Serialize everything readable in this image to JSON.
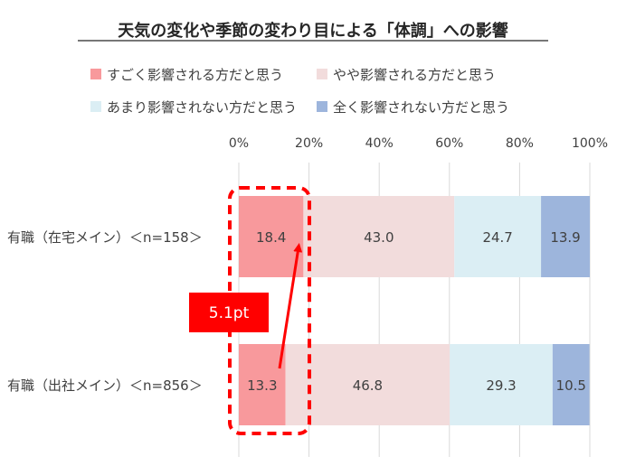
{
  "chart_data": {
    "type": "bar",
    "orientation": "horizontal",
    "stacked": true,
    "stack_mode": "percent",
    "title": "天気の変化や季節の変わり目による「体調」への影響",
    "categories": [
      "有職（在宅メイン）＜n=158＞",
      "有職（出社メイン）＜n=856＞"
    ],
    "series": [
      {
        "name": "すごく影響される方だと思う",
        "color": "#f8999c",
        "values": [
          18.4,
          13.3
        ]
      },
      {
        "name": "やや影響される方だと思う",
        "color": "#f2dcdc",
        "values": [
          43.0,
          46.8
        ]
      },
      {
        "name": "あまり影響されない方だと思う",
        "color": "#dbeef4",
        "values": [
          24.7,
          29.3
        ]
      },
      {
        "name": "全く影響されない方だと思う",
        "color": "#9db5dc",
        "values": [
          13.9,
          10.5
        ]
      }
    ],
    "x_ticks": [
      "0%",
      "20%",
      "40%",
      "60%",
      "80%",
      "100%"
    ],
    "xlim": [
      0,
      100
    ],
    "grid": true,
    "legend_position": "top",
    "annotation": {
      "text": "5.1pt",
      "color": "#ff0000"
    }
  }
}
